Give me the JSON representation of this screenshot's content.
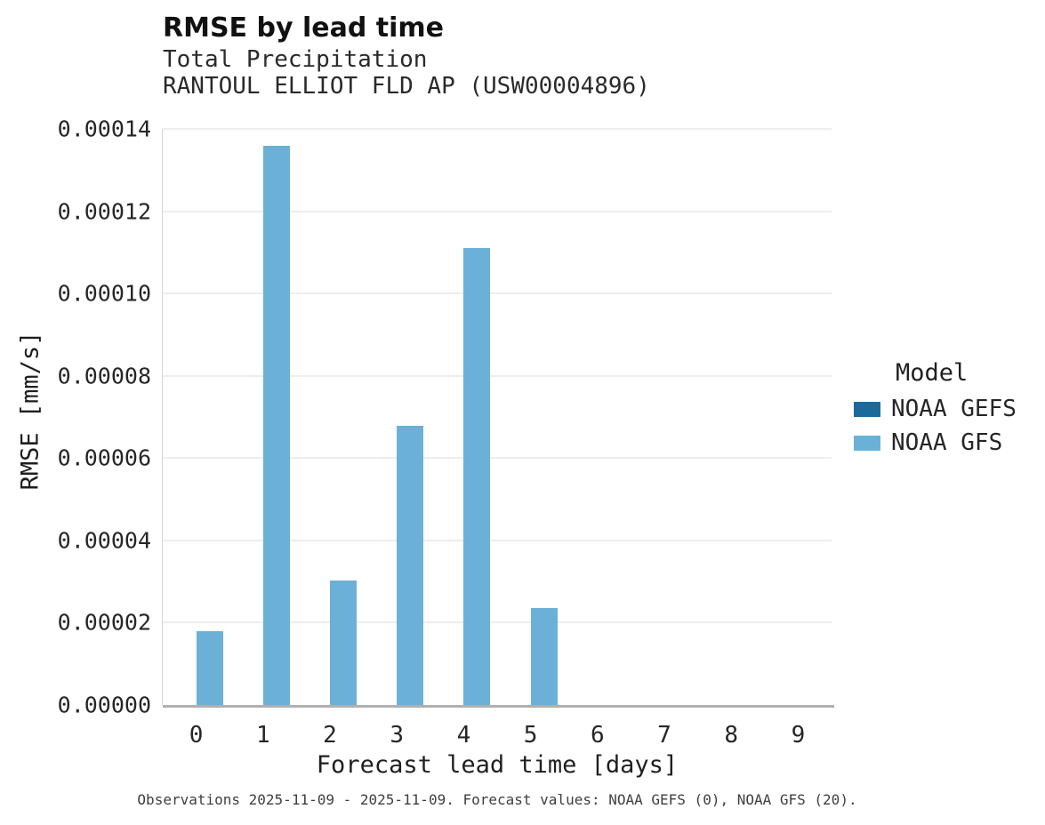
{
  "header": {
    "title": "RMSE by lead time",
    "subtitle": "Total Precipitation",
    "station": "RANTOUL ELLIOT FLD AP (USW00004896)"
  },
  "legend": {
    "title": "Model",
    "entries": [
      {
        "label": "NOAA GEFS",
        "color": "#1b6a9b"
      },
      {
        "label": "NOAA GFS",
        "color": "#6bb0d7"
      }
    ]
  },
  "footer": {
    "caption": "Observations 2025-11-09 - 2025-11-09. Forecast values: NOAA GEFS (0), NOAA GFS (20)."
  },
  "chart_data": {
    "type": "bar",
    "title": "RMSE by lead time",
    "subtitle": "Total Precipitation",
    "station": "RANTOUL ELLIOT FLD AP (USW00004896)",
    "categories": [
      "0",
      "1",
      "2",
      "3",
      "4",
      "5",
      "6",
      "7",
      "8",
      "9"
    ],
    "series": [
      {
        "name": "NOAA GEFS",
        "color": "#1b6a9b",
        "values": [
          0,
          0,
          0,
          0,
          0,
          0,
          0,
          0,
          0,
          0
        ]
      },
      {
        "name": "NOAA GFS",
        "color": "#6bb0d7",
        "values": [
          1.8e-05,
          0.000136,
          3.02e-05,
          6.78e-05,
          0.000111,
          2.35e-05,
          0,
          0,
          0,
          0
        ]
      }
    ],
    "xlabel": "Forecast lead time [days]",
    "ylabel": "RMSE [mm/s]",
    "ylim": [
      0,
      0.00014
    ],
    "yticks": [
      0,
      2e-05,
      4e-05,
      6e-05,
      8e-05,
      0.0001,
      0.00012,
      0.00014
    ],
    "ytick_labels": [
      "0.00000",
      "0.00002",
      "0.00004",
      "0.00006",
      "0.00008",
      "0.00010",
      "0.00012",
      "0.00014"
    ],
    "grid": true,
    "legend_position": "right"
  }
}
